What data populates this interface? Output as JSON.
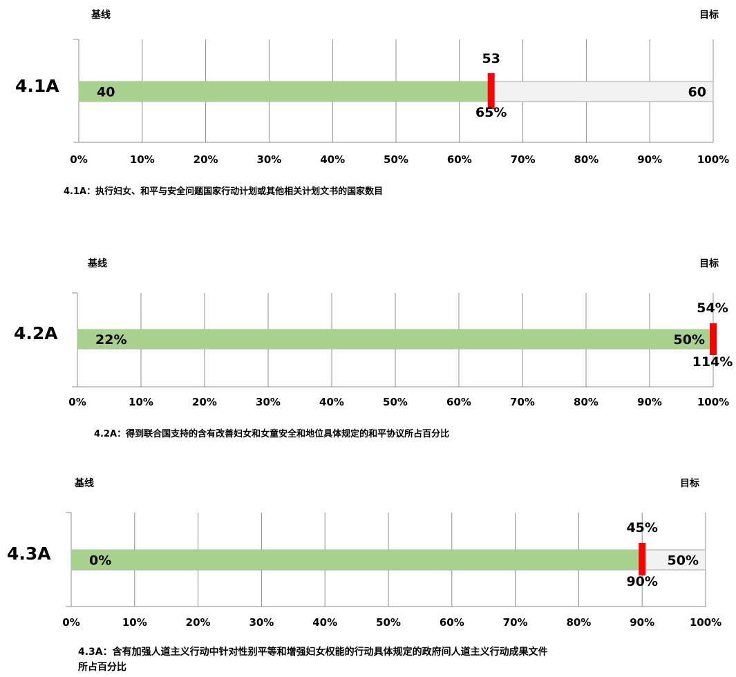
{
  "charts_meta": {
    "percent_suffix": "%"
  },
  "chart_data": [
    {
      "type": "bar",
      "row_label": "4.1A",
      "baseline_label": "基线",
      "target_label": "目标",
      "baseline_value_label": "40",
      "target_value_label": "60",
      "current_value_label": "53",
      "progress_label": "65%",
      "progress_percent": 65,
      "xlim": [
        0,
        100
      ],
      "x_ticks": [
        "0%",
        "10%",
        "20%",
        "30%",
        "40%",
        "50%",
        "60%",
        "70%",
        "80%",
        "90%",
        "100%"
      ],
      "caption": "4.1A：执行妇女、和平与安全问题国家行动计划或其他相关计划文书的国家数目",
      "colors": {
        "progress": "#a9d18e",
        "remaining": "#f2f2f2",
        "marker": "#ff0000"
      }
    },
    {
      "type": "bar",
      "row_label": "4.2A",
      "baseline_label": "基线",
      "target_label": "目标",
      "baseline_value_label": "22%",
      "target_value_label": "50%",
      "current_value_label": "54%",
      "progress_label": "114%",
      "progress_percent": 100,
      "xlim": [
        0,
        100
      ],
      "x_ticks": [
        "0%",
        "10%",
        "20%",
        "30%",
        "40%",
        "50%",
        "60%",
        "70%",
        "80%",
        "90%",
        "100%"
      ],
      "caption": "4.2A：得到联合国支持的含有改善妇女和女童安全和地位具体规定的和平协议所占百分比",
      "colors": {
        "progress": "#a9d18e",
        "remaining": "#f2f2f2",
        "marker": "#ff0000"
      }
    },
    {
      "type": "bar",
      "row_label": "4.3A",
      "baseline_label": "基线",
      "target_label": "目标",
      "baseline_value_label": "0%",
      "target_value_label": "50%",
      "current_value_label": "45%",
      "progress_label": "90%",
      "progress_percent": 90,
      "xlim": [
        0,
        100
      ],
      "x_ticks": [
        "0%",
        "10%",
        "20%",
        "30%",
        "40%",
        "50%",
        "60%",
        "70%",
        "80%",
        "90%",
        "100%"
      ],
      "caption_lines": [
        "4.3A：含有加强人道主义行动中针对性别平等和增强妇女权能的行动具体规定的政府间人道主义行动成果文件",
        "所占百分比"
      ],
      "colors": {
        "progress": "#a9d18e",
        "remaining": "#f2f2f2",
        "marker": "#ff0000"
      }
    }
  ]
}
